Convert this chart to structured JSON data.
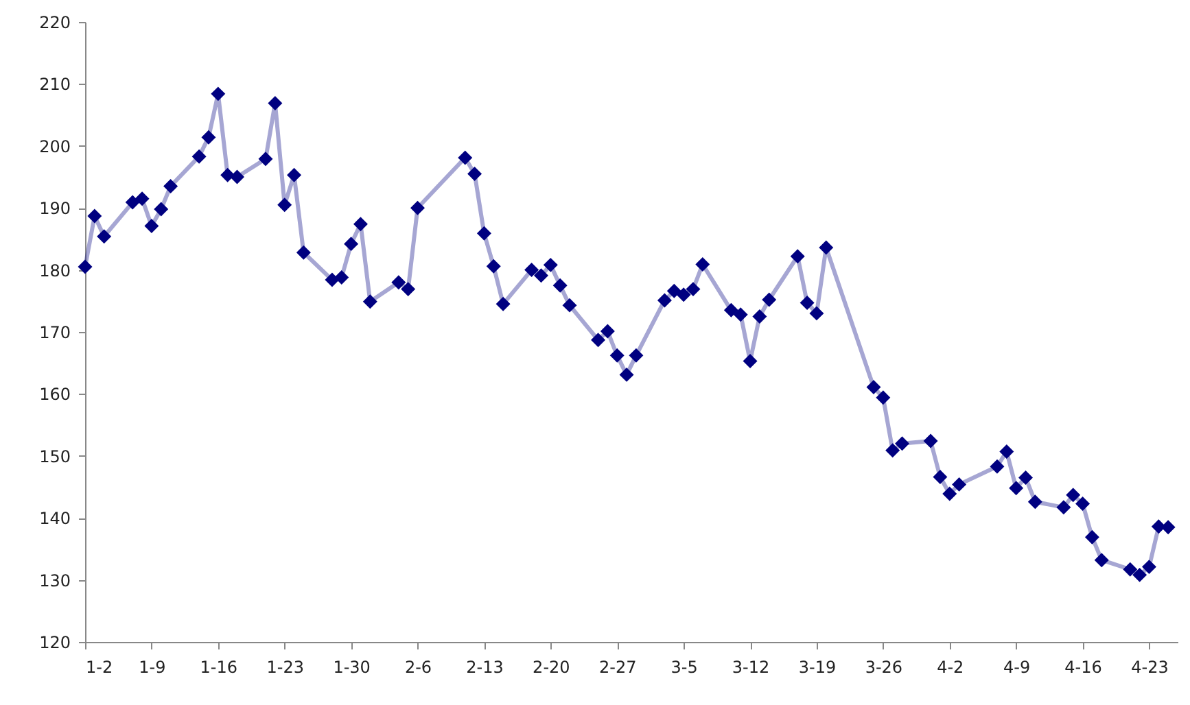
{
  "chart_data": {
    "type": "line",
    "x": [
      "--01-02",
      "--01-03",
      "--01-04",
      "--01-07",
      "--01-08",
      "--01-09",
      "--01-10",
      "--01-11",
      "--01-14",
      "--01-15",
      "--01-16",
      "--01-17",
      "--01-18",
      "--01-21",
      "--01-22",
      "--01-23",
      "--01-24",
      "--01-25",
      "--01-28",
      "--01-29",
      "--01-30",
      "--01-31",
      "--02-01",
      "--02-04",
      "--02-05",
      "--02-06",
      "--02-11",
      "--02-12",
      "--02-13",
      "--02-14",
      "--02-15",
      "--02-18",
      "--02-19",
      "--02-20",
      "--02-21",
      "--02-22",
      "--02-25",
      "--02-26",
      "--02-27",
      "--02-28",
      "--02-29",
      "--03-03",
      "--03-04",
      "--03-05",
      "--03-06",
      "--03-07",
      "--03-10",
      "--03-11",
      "--03-12",
      "--03-13",
      "--03-14",
      "--03-17",
      "--03-18",
      "--03-19",
      "--03-20",
      "--03-25",
      "--03-26",
      "--03-27",
      "--03-28",
      "--03-31",
      "--04-01",
      "--04-02",
      "--04-03",
      "--04-07",
      "--04-08",
      "--04-09",
      "--04-10",
      "--04-11",
      "--04-14",
      "--04-15",
      "--04-16",
      "--04-17",
      "--04-18",
      "--04-21",
      "--04-22",
      "--04-23",
      "--04-24",
      "--04-25"
    ],
    "series": [
      {
        "color": "#000080",
        "values": [
          180.5,
          188.7,
          185.4,
          190.9,
          191.5,
          187.1,
          189.8,
          193.5,
          198.3,
          201.4,
          208.4,
          195.3,
          195.0,
          197.9,
          206.9,
          190.5,
          195.3,
          182.8,
          178.4,
          178.8,
          184.2,
          187.4,
          174.9,
          178.0,
          176.9,
          190.0,
          198.1,
          195.5,
          185.9,
          180.6,
          174.5,
          180.0,
          179.1,
          180.8,
          177.5,
          174.3,
          168.7,
          170.1,
          166.2,
          163.1,
          166.2,
          175.1,
          176.6,
          176.0,
          176.9,
          180.9,
          173.5,
          172.8,
          165.3,
          172.5,
          175.2,
          182.2,
          174.7,
          173.0,
          183.6,
          161.1,
          159.4,
          150.9,
          152.0,
          152.4,
          146.6,
          143.9,
          145.4,
          148.3,
          150.7,
          144.8,
          146.5,
          142.6,
          141.7,
          143.7,
          142.3,
          136.9,
          133.2,
          131.7,
          130.8,
          132.1,
          138.6,
          138.5
        ]
      }
    ],
    "xlim": [
      "--01-02",
      "--04-26"
    ],
    "xticks": [
      {
        "value": "--01-02",
        "label": "1-2"
      },
      {
        "value": "--01-09",
        "label": "1-9"
      },
      {
        "value": "--01-16",
        "label": "1-16"
      },
      {
        "value": "--01-23",
        "label": "1-23"
      },
      {
        "value": "--01-30",
        "label": "1-30"
      },
      {
        "value": "--02-06",
        "label": "2-6"
      },
      {
        "value": "--02-13",
        "label": "2-13"
      },
      {
        "value": "--02-20",
        "label": "2-20"
      },
      {
        "value": "--02-27",
        "label": "2-27"
      },
      {
        "value": "--03-05",
        "label": "3-5"
      },
      {
        "value": "--03-12",
        "label": "3-12"
      },
      {
        "value": "--03-19",
        "label": "3-19"
      },
      {
        "value": "--03-26",
        "label": "3-26"
      },
      {
        "value": "--04-02",
        "label": "4-2"
      },
      {
        "value": "--04-09",
        "label": "4-9"
      },
      {
        "value": "--04-16",
        "label": "4-16"
      },
      {
        "value": "--04-23",
        "label": "4-23"
      }
    ],
    "ylim": [
      120,
      220
    ],
    "yticks": [
      120,
      130,
      140,
      150,
      160,
      170,
      180,
      190,
      200,
      210,
      220
    ],
    "marker": "diamond",
    "line_style": "solid",
    "grid": false
  }
}
